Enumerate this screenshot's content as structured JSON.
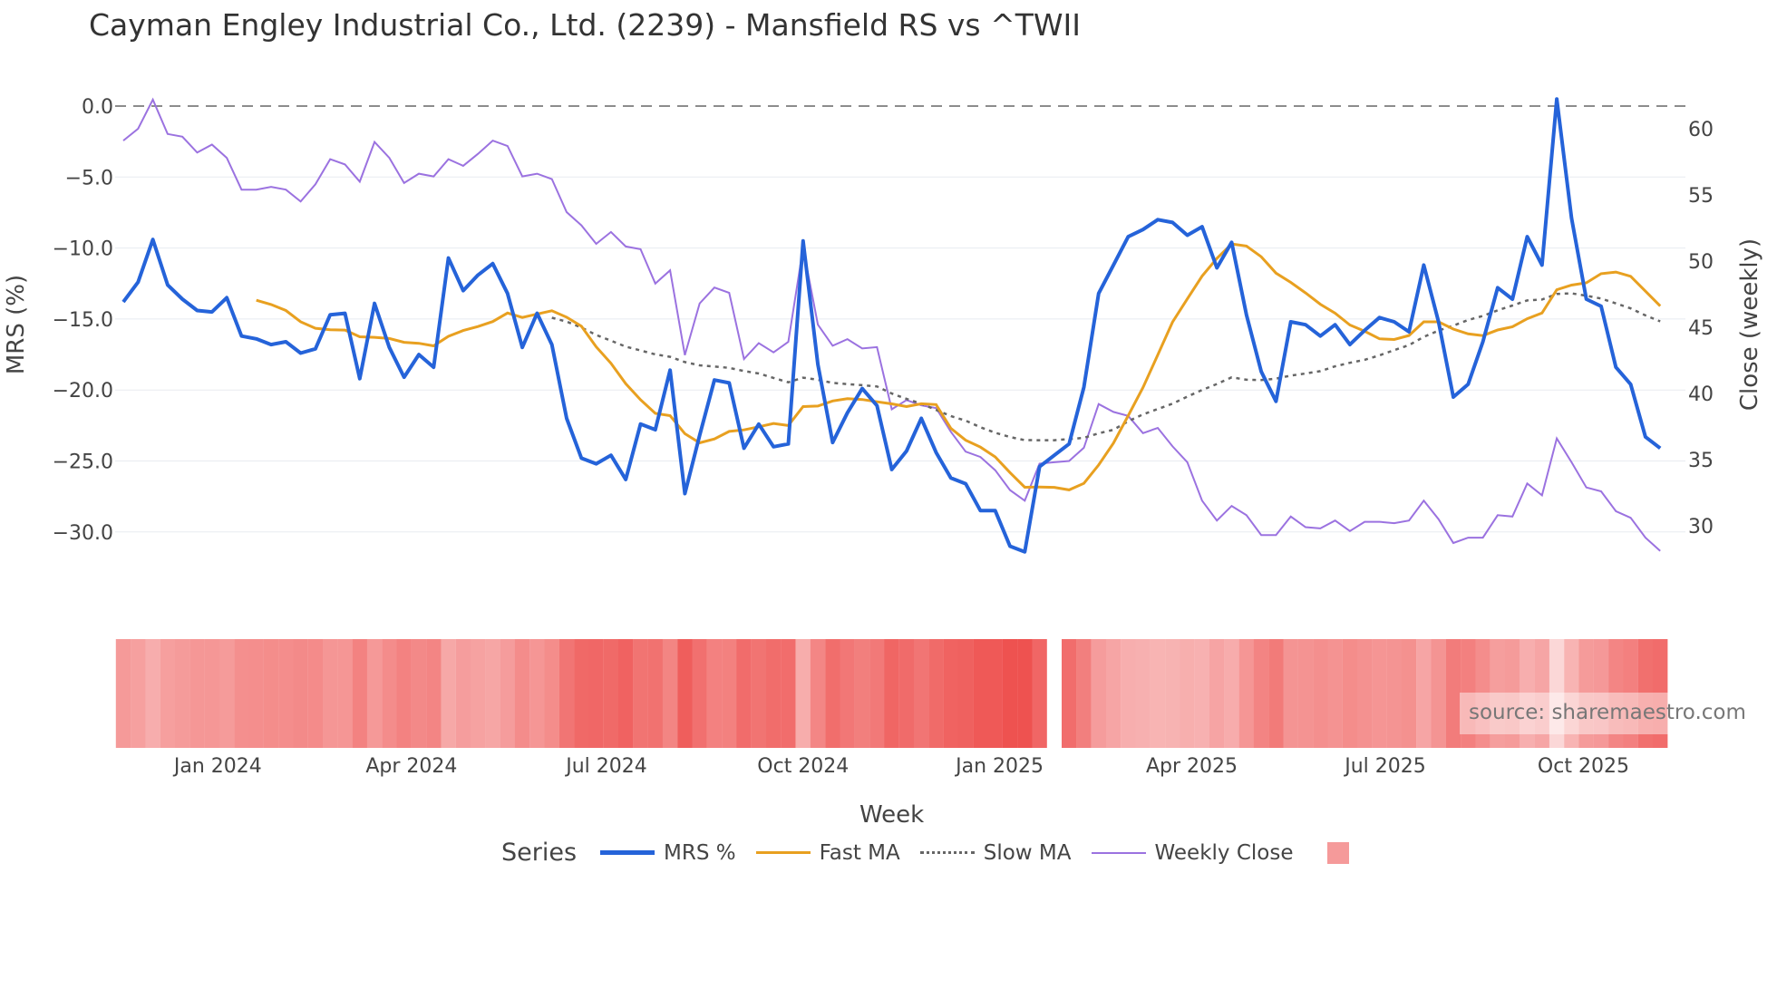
{
  "title": "Cayman Engley Industrial Co., Ltd. (2239) - Mansfield RS vs ^TWII",
  "source": "source: sharemaestro.com",
  "chart_data": {
    "type": "line",
    "title": "Cayman Engley Industrial Co., Ltd. (2239) - Mansfield RS vs ^TWII",
    "xlabel": "Week",
    "ylabel": "MRS (%)",
    "y2label": "Close (weekly)",
    "ylim": [
      -33,
      1.5
    ],
    "y2lim": [
      26,
      63
    ],
    "yticks": [
      0,
      -5,
      -10,
      -15,
      -20,
      -25,
      -30
    ],
    "ytick_labels": [
      "0.0",
      "−5.0",
      "−10.0",
      "−15.0",
      "−20.0",
      "−25.0",
      "−30.0"
    ],
    "y2ticks": [
      60,
      55,
      50,
      45,
      40,
      35,
      30
    ],
    "y2tick_labels": [
      "60",
      "55",
      "50",
      "45",
      "40",
      "35",
      "30"
    ],
    "xticks": [
      {
        "label": "Jan 2024",
        "week": 6.4
      },
      {
        "label": "Apr 2024",
        "week": 19.5
      },
      {
        "label": "Jul 2024",
        "week": 32.7
      },
      {
        "label": "Oct 2024",
        "week": 46.0
      },
      {
        "label": "Jan 2025",
        "week": 59.3
      },
      {
        "label": "Apr 2025",
        "week": 72.3
      },
      {
        "label": "Jul 2025",
        "week": 85.4
      },
      {
        "label": "Oct 2025",
        "week": 98.8
      }
    ],
    "reference_line": 0,
    "legend_title": "Series",
    "legend_position": "bottom",
    "series": [
      {
        "name": "MRS %",
        "color": "#2563d9",
        "axis": "left",
        "values": [
          -13.8,
          -12.4,
          -9.4,
          -12.6,
          -13.6,
          -14.4,
          -14.5,
          -13.5,
          -16.2,
          -16.4,
          -16.8,
          -16.6,
          -17.4,
          -17.1,
          -14.7,
          -14.6,
          -19.2,
          -13.9,
          -17.0,
          -19.1,
          -17.5,
          -18.4,
          -10.7,
          -13.0,
          -11.9,
          -11.1,
          -13.2,
          -17.0,
          -14.6,
          -16.8,
          -22.0,
          -24.8,
          -25.2,
          -24.6,
          -26.3,
          -22.4,
          -22.8,
          -18.6,
          -27.3,
          -23.2,
          -19.3,
          -19.5,
          -24.1,
          -22.4,
          -24.0,
          -23.8,
          -9.5,
          -18.2,
          -23.7,
          -21.6,
          -19.9,
          -21.1,
          -25.6,
          -24.3,
          -22.0,
          -24.4,
          -26.2,
          -26.6,
          -28.5,
          -28.5,
          -31.0,
          -31.4,
          -25.4,
          -24.6,
          -23.8,
          -19.8,
          -13.2,
          -11.2,
          -9.2,
          -8.7,
          -8.0,
          -8.2,
          -9.1,
          -8.5,
          -11.4,
          -9.6,
          -14.7,
          -18.7,
          -20.8,
          -15.2,
          -15.4,
          -16.2,
          -15.4,
          -16.8,
          -15.8,
          -14.9,
          -15.2,
          -15.9,
          -11.2,
          -15.2,
          -20.5,
          -19.6,
          -16.6,
          -12.8,
          -13.6,
          -9.2,
          -11.2,
          0.5,
          -7.9,
          -13.6,
          -14.1,
          -18.4,
          -19.6,
          -23.3,
          -24.1
        ]
      },
      {
        "name": "Fast MA",
        "color": "#e8a020",
        "axis": "left",
        "ma_of": "MRS %",
        "window": 10
      },
      {
        "name": "Slow MA",
        "color": "#666666",
        "axis": "left",
        "dash": true,
        "ma_of": "MRS %",
        "window": 30
      },
      {
        "name": "Weekly Close",
        "color": "#9b72e0",
        "axis": "right",
        "values": [
          59.1,
          60.0,
          62.2,
          59.6,
          59.4,
          58.2,
          58.8,
          57.8,
          55.4,
          55.4,
          55.6,
          55.4,
          54.5,
          55.8,
          57.7,
          57.3,
          56.0,
          59.0,
          57.8,
          55.9,
          56.6,
          56.4,
          57.7,
          57.2,
          58.1,
          59.1,
          58.7,
          56.4,
          56.6,
          56.2,
          53.7,
          52.7,
          51.3,
          52.2,
          51.1,
          50.9,
          48.3,
          49.3,
          42.9,
          46.8,
          48.0,
          47.6,
          42.6,
          43.8,
          43.1,
          43.9,
          51.0,
          45.2,
          43.6,
          44.1,
          43.4,
          43.5,
          38.8,
          39.5,
          39.1,
          38.9,
          37.1,
          35.6,
          35.2,
          34.2,
          32.7,
          31.9,
          34.7,
          34.8,
          34.9,
          35.9,
          39.2,
          38.6,
          38.3,
          37.0,
          37.4,
          36.0,
          34.8,
          31.9,
          30.4,
          31.5,
          30.8,
          29.3,
          29.3,
          30.7,
          29.9,
          29.8,
          30.4,
          29.6,
          30.3,
          30.3,
          30.2,
          30.4,
          31.9,
          30.5,
          28.7,
          29.1,
          29.1,
          30.8,
          30.7,
          33.2,
          32.3,
          36.6,
          34.8,
          32.9,
          32.6,
          31.1,
          30.6,
          29.1,
          28.1
        ]
      },
      {
        "name": "",
        "color": "#f59a9a",
        "type": "heatmap",
        "source": "MRS %",
        "missing_week": 63
      }
    ]
  }
}
